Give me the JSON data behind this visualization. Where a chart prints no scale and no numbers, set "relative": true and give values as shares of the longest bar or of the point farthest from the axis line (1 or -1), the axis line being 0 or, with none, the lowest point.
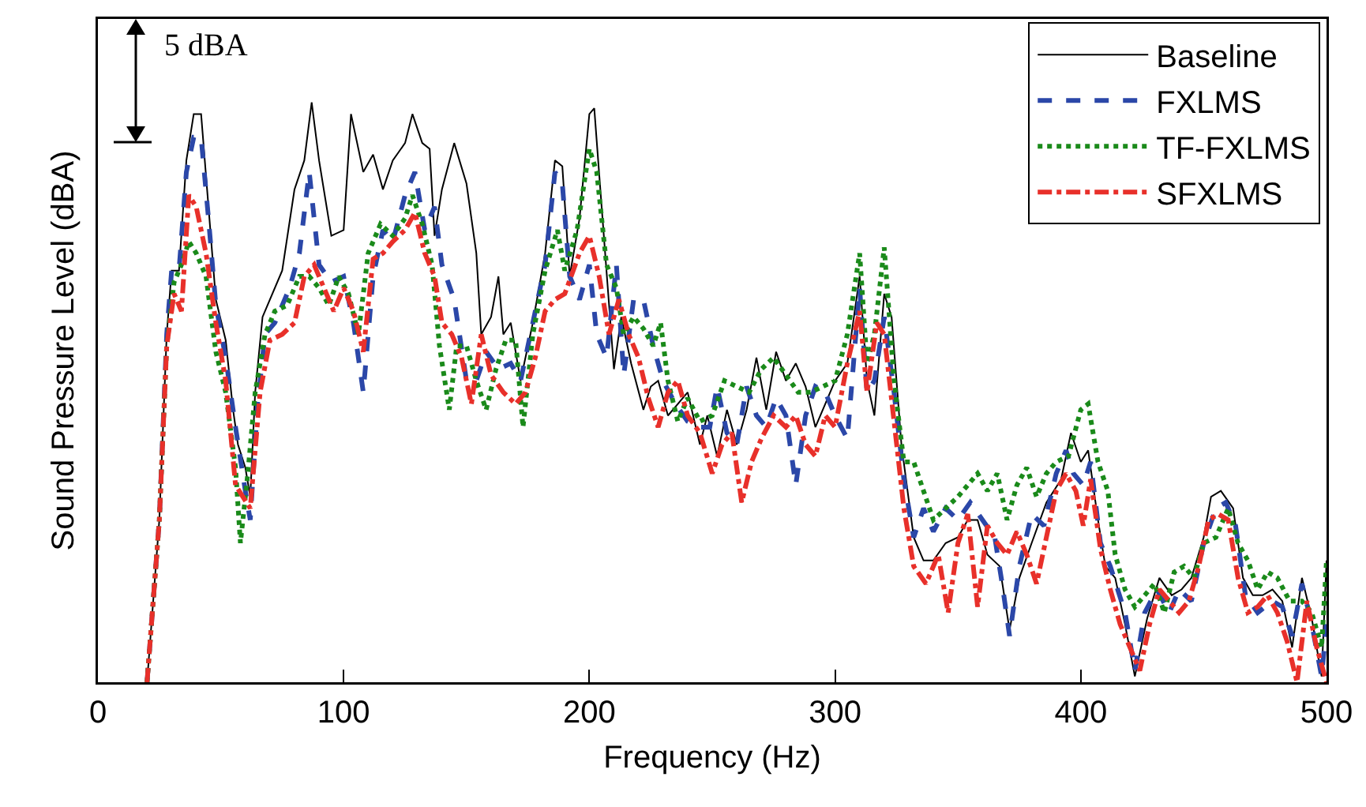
{
  "chart_data": {
    "type": "line",
    "relative": true,
    "xlabel": "Frequency (Hz)",
    "ylabel": "Sound Pressure Level (dBA)",
    "xlim": [
      0,
      500
    ],
    "xticks": [
      0,
      100,
      200,
      300,
      400,
      500
    ],
    "grid": false,
    "legend": "top right",
    "marker": "none",
    "annotations": [
      "5 dBA"
    ],
    "series": [
      {
        "name": "Baseline",
        "color": "#000000",
        "line_style": "solid",
        "x": [
          20,
          25,
          28,
          30,
          33,
          36,
          39,
          42,
          45,
          48,
          52,
          55,
          57,
          60,
          62,
          64,
          67,
          70,
          75,
          80,
          84,
          87,
          90,
          95,
          100,
          103,
          108,
          112,
          116,
          120,
          125,
          128,
          132,
          135,
          137,
          140,
          145,
          150,
          154,
          156,
          160,
          163,
          165,
          168,
          172,
          177,
          182,
          186,
          189,
          192,
          196,
          200,
          202,
          205,
          210,
          213,
          217,
          222,
          225,
          228,
          232,
          236,
          240,
          245,
          248,
          252,
          256,
          260,
          264,
          268,
          272,
          276,
          280,
          284,
          288,
          292,
          296,
          300,
          305,
          310,
          313,
          316,
          320,
          323,
          327,
          332,
          336,
          340,
          345,
          350,
          354,
          358,
          362,
          367,
          371,
          375,
          380,
          386,
          392,
          396,
          400,
          403,
          407,
          410,
          414,
          418,
          422,
          427,
          432,
          437,
          441,
          445,
          450,
          453,
          457,
          462,
          466,
          470,
          474,
          478,
          482,
          486,
          490,
          494,
          498,
          500
        ],
        "values": [
          0,
          0.28,
          0.6,
          0.71,
          0.71,
          0.9,
          0.98,
          0.98,
          0.82,
          0.66,
          0.59,
          0.47,
          0.41,
          0.37,
          0.32,
          0.5,
          0.63,
          0.66,
          0.71,
          0.85,
          0.9,
          1,
          0.9,
          0.77,
          0.78,
          0.98,
          0.88,
          0.91,
          0.85,
          0.9,
          0.93,
          0.98,
          0.93,
          0.92,
          0.77,
          0.85,
          0.93,
          0.86,
          0.74,
          0.6,
          0.63,
          0.7,
          0.6,
          0.62,
          0.52,
          0.62,
          0.74,
          0.9,
          0.89,
          0.7,
          0.8,
          0.98,
          0.99,
          0.82,
          0.54,
          0.63,
          0.55,
          0.47,
          0.51,
          0.52,
          0.46,
          0.48,
          0.5,
          0.41,
          0.46,
          0.39,
          0.47,
          0.41,
          0.47,
          0.56,
          0.47,
          0.57,
          0.52,
          0.55,
          0.51,
          0.44,
          0.48,
          0.52,
          0.55,
          0.7,
          0.52,
          0.46,
          0.67,
          0.63,
          0.41,
          0.25,
          0.21,
          0.21,
          0.24,
          0.25,
          0.28,
          0.28,
          0.22,
          0.2,
          0.09,
          0.18,
          0.24,
          0.31,
          0.35,
          0.43,
          0.38,
          0.4,
          0.28,
          0.2,
          0.18,
          0.1,
          0.01,
          0.11,
          0.18,
          0.15,
          0.16,
          0.18,
          0.25,
          0.32,
          0.33,
          0.3,
          0.18,
          0.15,
          0.15,
          0.16,
          0.14,
          0.06,
          0.18,
          0.11,
          0.01,
          0.21
        ]
      },
      {
        "name": "FXLMS",
        "color": "#2b47a8",
        "line_style": "dashed",
        "x": [
          20,
          25,
          28,
          30,
          33,
          36,
          39,
          42,
          45,
          48,
          52,
          56,
          60,
          62,
          65,
          68,
          72,
          78,
          82,
          86,
          90,
          95,
          100,
          104,
          108,
          112,
          116,
          120,
          125,
          129,
          133,
          137,
          140,
          145,
          150,
          154,
          158,
          163,
          168,
          172,
          177,
          182,
          186,
          189,
          192,
          196,
          200,
          203,
          207,
          211,
          214,
          218,
          222,
          226,
          230,
          235,
          240,
          245,
          249,
          252,
          256,
          260,
          264,
          268,
          272,
          276,
          280,
          284,
          288,
          292,
          296,
          300,
          305,
          310,
          313,
          316,
          320,
          324,
          328,
          332,
          336,
          340,
          345,
          350,
          355,
          360,
          365,
          368,
          371,
          375,
          380,
          385,
          390,
          394,
          397,
          401,
          404,
          408,
          412,
          418,
          422,
          426,
          431,
          436,
          440,
          445,
          450,
          455,
          459,
          463,
          467,
          472,
          478,
          482,
          486,
          490,
          494,
          498,
          500
        ],
        "values": [
          0,
          0.28,
          0.6,
          0.71,
          0.71,
          0.88,
          0.94,
          0.94,
          0.8,
          0.65,
          0.56,
          0.44,
          0.33,
          0.28,
          0.48,
          0.6,
          0.62,
          0.68,
          0.74,
          0.88,
          0.72,
          0.69,
          0.7,
          0.62,
          0.5,
          0.7,
          0.78,
          0.76,
          0.84,
          0.88,
          0.78,
          0.82,
          0.72,
          0.66,
          0.52,
          0.52,
          0.57,
          0.54,
          0.55,
          0.52,
          0.62,
          0.72,
          0.88,
          0.86,
          0.7,
          0.66,
          0.72,
          0.6,
          0.56,
          0.72,
          0.53,
          0.66,
          0.66,
          0.58,
          0.52,
          0.48,
          0.45,
          0.44,
          0.44,
          0.51,
          0.43,
          0.41,
          0.51,
          0.46,
          0.44,
          0.49,
          0.46,
          0.34,
          0.46,
          0.51,
          0.5,
          0.46,
          0.42,
          0.68,
          0.5,
          0.52,
          0.63,
          0.5,
          0.35,
          0.25,
          0.3,
          0.26,
          0.3,
          0.28,
          0.31,
          0.28,
          0.25,
          0.17,
          0.08,
          0.2,
          0.29,
          0.27,
          0.36,
          0.4,
          0.36,
          0.34,
          0.38,
          0.24,
          0.2,
          0.12,
          0.02,
          0.12,
          0.16,
          0.12,
          0.16,
          0.14,
          0.24,
          0.3,
          0.31,
          0.27,
          0.15,
          0.12,
          0.14,
          0.13,
          0.08,
          0.17,
          0.1,
          0.01,
          0.1
        ]
      },
      {
        "name": "TF-FXLMS",
        "color": "#1a8a1a",
        "line_style": "dotted",
        "x": [
          20,
          25,
          28,
          31,
          34,
          37,
          40,
          44,
          48,
          52,
          56,
          58,
          61,
          64,
          68,
          72,
          77,
          82,
          86,
          90,
          94,
          98,
          102,
          106,
          110,
          115,
          120,
          125,
          128,
          132,
          136,
          139,
          143,
          146,
          150,
          154,
          158,
          162,
          166,
          170,
          173,
          177,
          182,
          187,
          190,
          195,
          200,
          203,
          207,
          211,
          214,
          218,
          222,
          226,
          229,
          232,
          236,
          240,
          245,
          250,
          255,
          260,
          265,
          270,
          275,
          280,
          285,
          290,
          295,
          300,
          305,
          310,
          313,
          316,
          320,
          324,
          328,
          332,
          336,
          340,
          345,
          350,
          354,
          358,
          362,
          366,
          370,
          374,
          378,
          382,
          386,
          390,
          395,
          400,
          403,
          407,
          411,
          414,
          418,
          422,
          426,
          430,
          434,
          438,
          442,
          446,
          450,
          455,
          460,
          464,
          468,
          472,
          476,
          480,
          485,
          490,
          494,
          498,
          500
        ],
        "values": [
          0,
          0.28,
          0.58,
          0.69,
          0.72,
          0.76,
          0.74,
          0.7,
          0.57,
          0.5,
          0.37,
          0.24,
          0.36,
          0.5,
          0.6,
          0.64,
          0.65,
          0.7,
          0.7,
          0.68,
          0.65,
          0.7,
          0.67,
          0.6,
          0.74,
          0.79,
          0.77,
          0.8,
          0.84,
          0.79,
          0.72,
          0.58,
          0.47,
          0.58,
          0.58,
          0.52,
          0.47,
          0.54,
          0.59,
          0.59,
          0.44,
          0.6,
          0.71,
          0.78,
          0.71,
          0.78,
          0.92,
          0.88,
          0.72,
          0.68,
          0.6,
          0.63,
          0.61,
          0.58,
          0.62,
          0.52,
          0.45,
          0.49,
          0.45,
          0.46,
          0.52,
          0.51,
          0.5,
          0.54,
          0.56,
          0.53,
          0.5,
          0.5,
          0.51,
          0.52,
          0.6,
          0.74,
          0.55,
          0.6,
          0.75,
          0.52,
          0.38,
          0.38,
          0.33,
          0.28,
          0.3,
          0.32,
          0.34,
          0.36,
          0.33,
          0.36,
          0.28,
          0.34,
          0.37,
          0.32,
          0.36,
          0.38,
          0.39,
          0.47,
          0.48,
          0.38,
          0.33,
          0.22,
          0.16,
          0.13,
          0.15,
          0.17,
          0.12,
          0.19,
          0.2,
          0.18,
          0.24,
          0.25,
          0.3,
          0.24,
          0.21,
          0.16,
          0.19,
          0.18,
          0.14,
          0.14,
          0.12,
          0.06,
          0.21
        ]
      },
      {
        "name": "SFXLMS",
        "color": "#e8302a",
        "line_style": "dashdot",
        "x": [
          20,
          25,
          28,
          31,
          34,
          37,
          40,
          44,
          48,
          52,
          56,
          59,
          62,
          66,
          70,
          75,
          80,
          84,
          88,
          92,
          96,
          100,
          104,
          108,
          112,
          116,
          120,
          125,
          129,
          133,
          137,
          140,
          144,
          148,
          152,
          156,
          160,
          165,
          170,
          174,
          178,
          182,
          186,
          190,
          196,
          200,
          204,
          208,
          212,
          216,
          220,
          224,
          228,
          232,
          236,
          240,
          245,
          250,
          254,
          258,
          262,
          266,
          270,
          275,
          280,
          284,
          288,
          292,
          296,
          300,
          305,
          310,
          313,
          317,
          320,
          324,
          328,
          332,
          337,
          342,
          346,
          350,
          354,
          358,
          362,
          366,
          370,
          374,
          378,
          382,
          386,
          390,
          394,
          398,
          401,
          404,
          408,
          412,
          416,
          420,
          424,
          428,
          432,
          436,
          440,
          444,
          448,
          452,
          456,
          460,
          464,
          468,
          472,
          476,
          480,
          484,
          488,
          492,
          496,
          500
        ],
        "values": [
          0,
          0.28,
          0.58,
          0.67,
          0.64,
          0.84,
          0.82,
          0.74,
          0.62,
          0.52,
          0.34,
          0.32,
          0.3,
          0.5,
          0.59,
          0.6,
          0.62,
          0.7,
          0.72,
          0.68,
          0.64,
          0.68,
          0.64,
          0.57,
          0.73,
          0.74,
          0.76,
          0.78,
          0.81,
          0.74,
          0.7,
          0.62,
          0.6,
          0.56,
          0.48,
          0.6,
          0.53,
          0.5,
          0.48,
          0.5,
          0.56,
          0.64,
          0.66,
          0.67,
          0.74,
          0.77,
          0.7,
          0.6,
          0.66,
          0.6,
          0.56,
          0.49,
          0.44,
          0.5,
          0.52,
          0.46,
          0.43,
          0.36,
          0.41,
          0.43,
          0.31,
          0.38,
          0.42,
          0.46,
          0.44,
          0.46,
          0.41,
          0.39,
          0.46,
          0.44,
          0.55,
          0.64,
          0.5,
          0.62,
          0.6,
          0.45,
          0.3,
          0.2,
          0.17,
          0.22,
          0.12,
          0.24,
          0.29,
          0.13,
          0.27,
          0.24,
          0.22,
          0.26,
          0.22,
          0.17,
          0.25,
          0.33,
          0.36,
          0.33,
          0.27,
          0.35,
          0.23,
          0.16,
          0.1,
          0.06,
          0.02,
          0.1,
          0.16,
          0.14,
          0.12,
          0.14,
          0.2,
          0.28,
          0.29,
          0.28,
          0.18,
          0.12,
          0.13,
          0.15,
          0.12,
          0.07,
          0,
          0.14,
          0.06,
          0
        ]
      }
    ]
  }
}
